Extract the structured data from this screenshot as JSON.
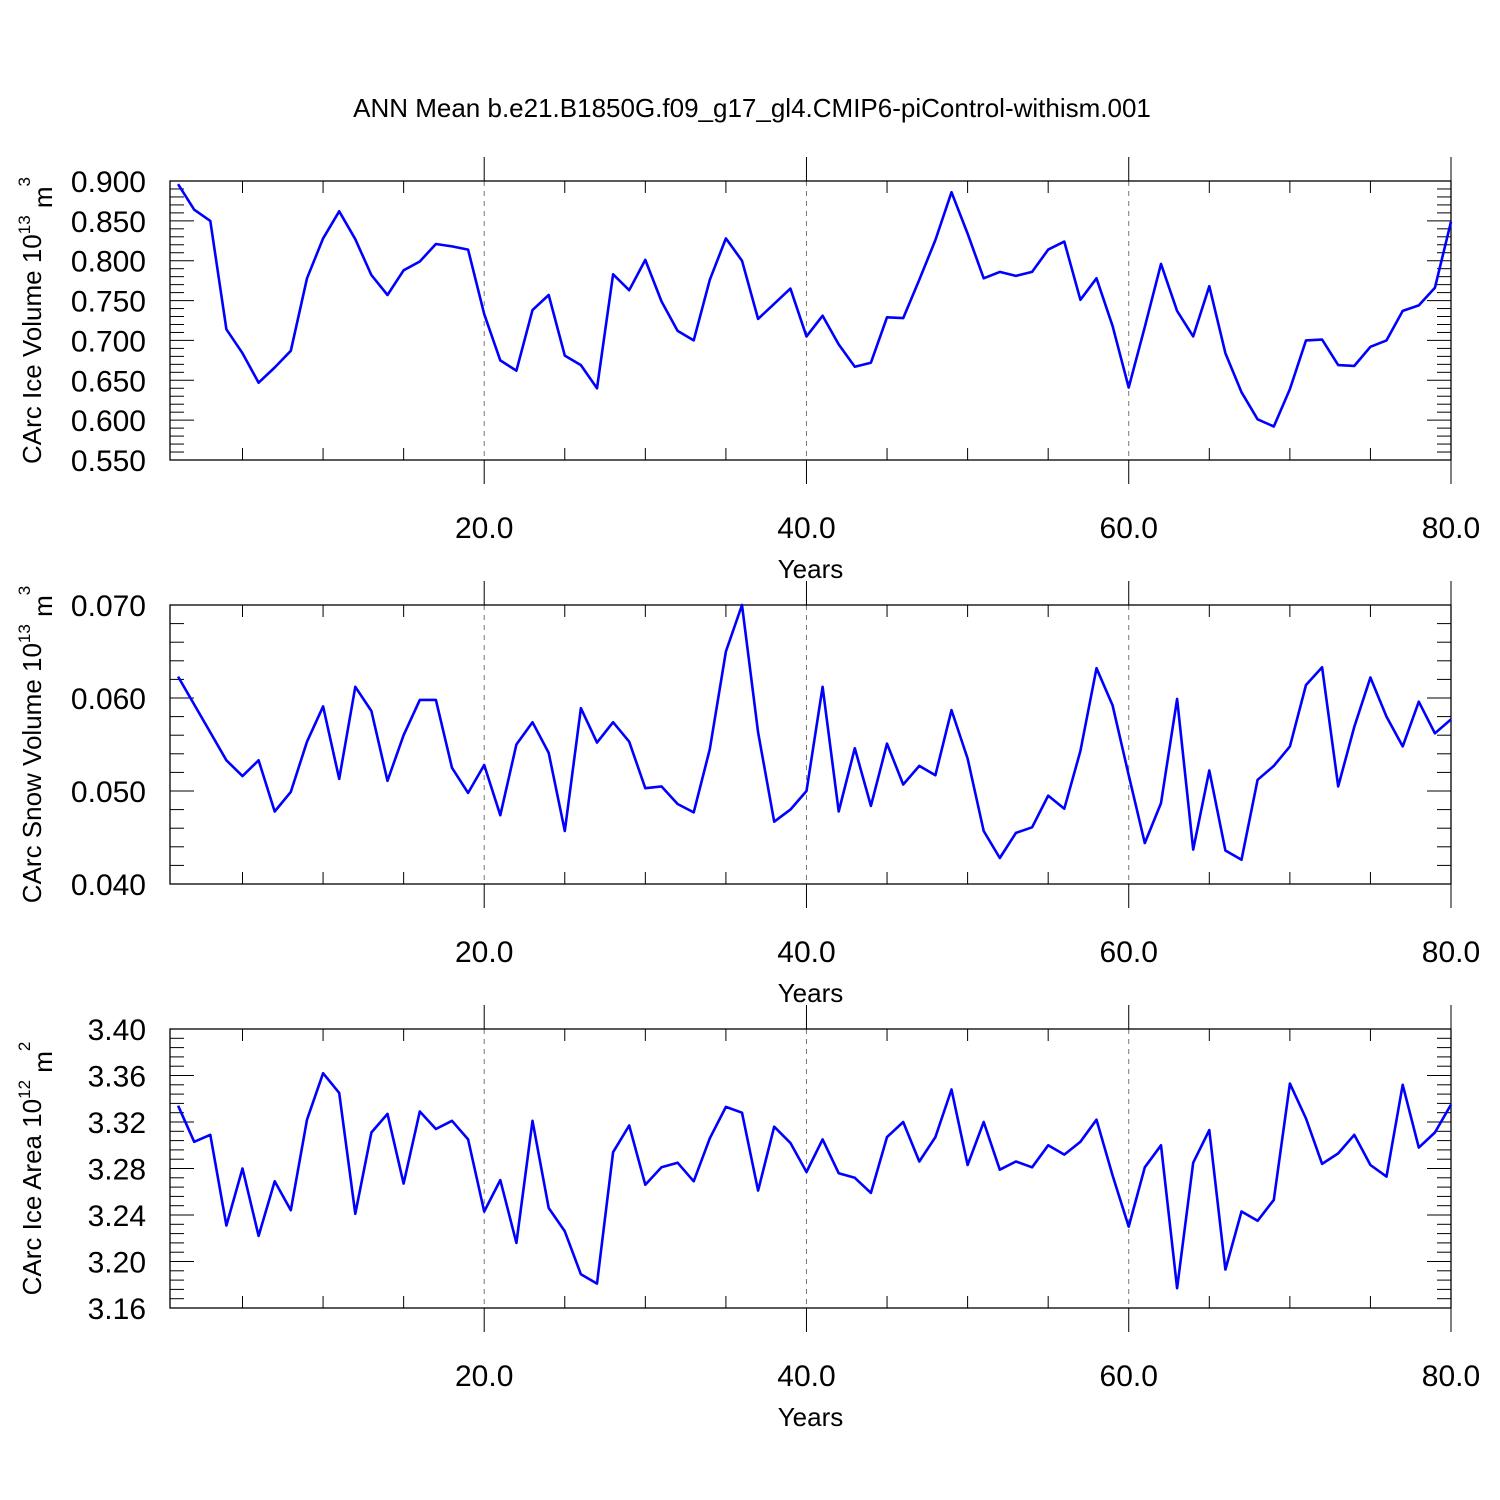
{
  "title": "ANN Mean b.e21.B1850G.f09_g17_gl4.CMIP6-piControl-withism.001",
  "colors": {
    "series": "#0000ff",
    "frame": "#000000",
    "grid": "#777777"
  },
  "chart_data": [
    {
      "type": "line",
      "xlabel": "Years",
      "ylabel": {
        "text": "CArc Ice Volume 10",
        "exp": "13",
        "unit": " m",
        "unit_exp": "3"
      },
      "xlim": [
        0.5,
        80
      ],
      "ylim": [
        0.55,
        0.9
      ],
      "xticks": [
        20,
        40,
        60,
        80
      ],
      "xtick_labels": [
        "20.0",
        "40.0",
        "60.0",
        "80.0"
      ],
      "yticks": [
        0.55,
        0.6,
        0.65,
        0.7,
        0.75,
        0.8,
        0.85,
        0.9
      ],
      "ytick_labels": [
        "0.550",
        "0.600",
        "0.650",
        "0.700",
        "0.750",
        "0.800",
        "0.850",
        "0.900"
      ],
      "grid": "vertical dashed at major x ticks",
      "x": [
        1,
        2,
        3,
        4,
        5,
        6,
        7,
        8,
        9,
        10,
        11,
        12,
        13,
        14,
        15,
        16,
        17,
        18,
        19,
        20,
        21,
        22,
        23,
        24,
        25,
        26,
        27,
        28,
        29,
        30,
        31,
        32,
        33,
        34,
        35,
        36,
        37,
        38,
        39,
        40,
        41,
        42,
        43,
        44,
        45,
        46,
        47,
        48,
        49,
        50,
        51,
        52,
        53,
        54,
        55,
        56,
        57,
        58,
        59,
        60,
        61,
        62,
        63,
        64,
        65,
        66,
        67,
        68,
        69,
        70,
        71,
        72,
        73,
        74,
        75,
        76,
        77,
        78,
        79,
        80
      ],
      "values": [
        0.896,
        0.864,
        0.85,
        0.714,
        0.684,
        0.647,
        0.666,
        0.687,
        0.778,
        0.828,
        0.862,
        0.827,
        0.782,
        0.757,
        0.788,
        0.799,
        0.821,
        0.818,
        0.814,
        0.733,
        0.675,
        0.662,
        0.738,
        0.757,
        0.681,
        0.669,
        0.64,
        0.783,
        0.763,
        0.801,
        0.749,
        0.712,
        0.7,
        0.776,
        0.828,
        0.8,
        0.727,
        0.746,
        0.765,
        0.705,
        0.731,
        0.695,
        0.667,
        0.672,
        0.729,
        0.728,
        0.776,
        0.826,
        0.886,
        0.834,
        0.778,
        0.786,
        0.781,
        0.786,
        0.814,
        0.824,
        0.751,
        0.778,
        0.718,
        0.641,
        0.717,
        0.796,
        0.737,
        0.705,
        0.768,
        0.684,
        0.635,
        0.601,
        0.592,
        0.639,
        0.7,
        0.701,
        0.669,
        0.668,
        0.692,
        0.7,
        0.737,
        0.744,
        0.766,
        0.849
      ]
    },
    {
      "type": "line",
      "xlabel": "Years",
      "ylabel": {
        "text": "CArc Snow Volume 10",
        "exp": "13",
        "unit": " m",
        "unit_exp": "3"
      },
      "xlim": [
        0.5,
        80
      ],
      "ylim": [
        0.04,
        0.07
      ],
      "xticks": [
        20,
        40,
        60,
        80
      ],
      "xtick_labels": [
        "20.0",
        "40.0",
        "60.0",
        "80.0"
      ],
      "yticks": [
        0.04,
        0.05,
        0.06,
        0.07
      ],
      "ytick_labels": [
        "0.040",
        "0.050",
        "0.060",
        "0.070"
      ],
      "grid": "vertical dashed at major x ticks",
      "x": [
        1,
        2,
        3,
        4,
        5,
        6,
        7,
        8,
        9,
        10,
        11,
        12,
        13,
        14,
        15,
        16,
        17,
        18,
        19,
        20,
        21,
        22,
        23,
        24,
        25,
        26,
        27,
        28,
        29,
        30,
        31,
        32,
        33,
        34,
        35,
        36,
        37,
        38,
        39,
        40,
        41,
        42,
        43,
        44,
        45,
        46,
        47,
        48,
        49,
        50,
        51,
        52,
        53,
        54,
        55,
        56,
        57,
        58,
        59,
        60,
        61,
        62,
        63,
        64,
        65,
        66,
        67,
        68,
        69,
        70,
        71,
        72,
        73,
        74,
        75,
        76,
        77,
        78,
        79,
        80
      ],
      "values": [
        0.0623,
        0.0593,
        0.0563,
        0.0533,
        0.0516,
        0.0533,
        0.0478,
        0.0499,
        0.0553,
        0.0591,
        0.0513,
        0.0612,
        0.0586,
        0.0511,
        0.056,
        0.0598,
        0.0598,
        0.0525,
        0.0498,
        0.0528,
        0.0474,
        0.055,
        0.0574,
        0.0541,
        0.0457,
        0.0589,
        0.0552,
        0.0574,
        0.0553,
        0.0503,
        0.0505,
        0.0486,
        0.0477,
        0.0545,
        0.065,
        0.07,
        0.0563,
        0.0467,
        0.048,
        0.05,
        0.0612,
        0.0478,
        0.0546,
        0.0484,
        0.0551,
        0.0507,
        0.0527,
        0.0517,
        0.0587,
        0.0535,
        0.0457,
        0.0428,
        0.0455,
        0.0461,
        0.0495,
        0.0481,
        0.0543,
        0.0632,
        0.0592,
        0.0517,
        0.0444,
        0.0487,
        0.0599,
        0.0437,
        0.0522,
        0.0436,
        0.0426,
        0.0512,
        0.0527,
        0.0548,
        0.0614,
        0.0633,
        0.0505,
        0.0569,
        0.0622,
        0.058,
        0.0548,
        0.0596,
        0.0562,
        0.0577
      ]
    },
    {
      "type": "line",
      "xlabel": "Years",
      "ylabel": {
        "text": "CArc Ice Area 10",
        "exp": "12",
        "unit": " m",
        "unit_exp": "2"
      },
      "xlim": [
        0.5,
        80
      ],
      "ylim": [
        3.16,
        3.4
      ],
      "xticks": [
        20,
        40,
        60,
        80
      ],
      "xtick_labels": [
        "20.0",
        "40.0",
        "60.0",
        "80.0"
      ],
      "yticks": [
        3.16,
        3.2,
        3.24,
        3.28,
        3.32,
        3.36,
        3.4
      ],
      "ytick_labels": [
        "3.16",
        "3.20",
        "3.24",
        "3.28",
        "3.32",
        "3.36",
        "3.40"
      ],
      "grid": "vertical dashed at major x ticks",
      "x": [
        1,
        2,
        3,
        4,
        5,
        6,
        7,
        8,
        9,
        10,
        11,
        12,
        13,
        14,
        15,
        16,
        17,
        18,
        19,
        20,
        21,
        22,
        23,
        24,
        25,
        26,
        27,
        28,
        29,
        30,
        31,
        32,
        33,
        34,
        35,
        36,
        37,
        38,
        39,
        40,
        41,
        42,
        43,
        44,
        45,
        46,
        47,
        48,
        49,
        50,
        51,
        52,
        53,
        54,
        55,
        56,
        57,
        58,
        59,
        60,
        61,
        62,
        63,
        64,
        65,
        66,
        67,
        68,
        69,
        70,
        71,
        72,
        73,
        74,
        75,
        76,
        77,
        78,
        79,
        80
      ],
      "values": [
        3.334,
        3.303,
        3.309,
        3.231,
        3.28,
        3.222,
        3.269,
        3.244,
        3.322,
        3.362,
        3.345,
        3.241,
        3.311,
        3.327,
        3.267,
        3.329,
        3.314,
        3.321,
        3.305,
        3.243,
        3.27,
        3.216,
        3.321,
        3.246,
        3.226,
        3.189,
        3.181,
        3.294,
        3.317,
        3.266,
        3.281,
        3.285,
        3.269,
        3.306,
        3.333,
        3.328,
        3.261,
        3.316,
        3.302,
        3.277,
        3.305,
        3.276,
        3.272,
        3.259,
        3.307,
        3.32,
        3.286,
        3.307,
        3.348,
        3.283,
        3.32,
        3.279,
        3.286,
        3.281,
        3.3,
        3.292,
        3.303,
        3.322,
        3.274,
        3.23,
        3.281,
        3.3,
        3.177,
        3.285,
        3.313,
        3.193,
        3.243,
        3.235,
        3.253,
        3.353,
        3.323,
        3.284,
        3.293,
        3.309,
        3.283,
        3.273,
        3.352,
        3.298,
        3.311,
        3.335
      ]
    }
  ]
}
